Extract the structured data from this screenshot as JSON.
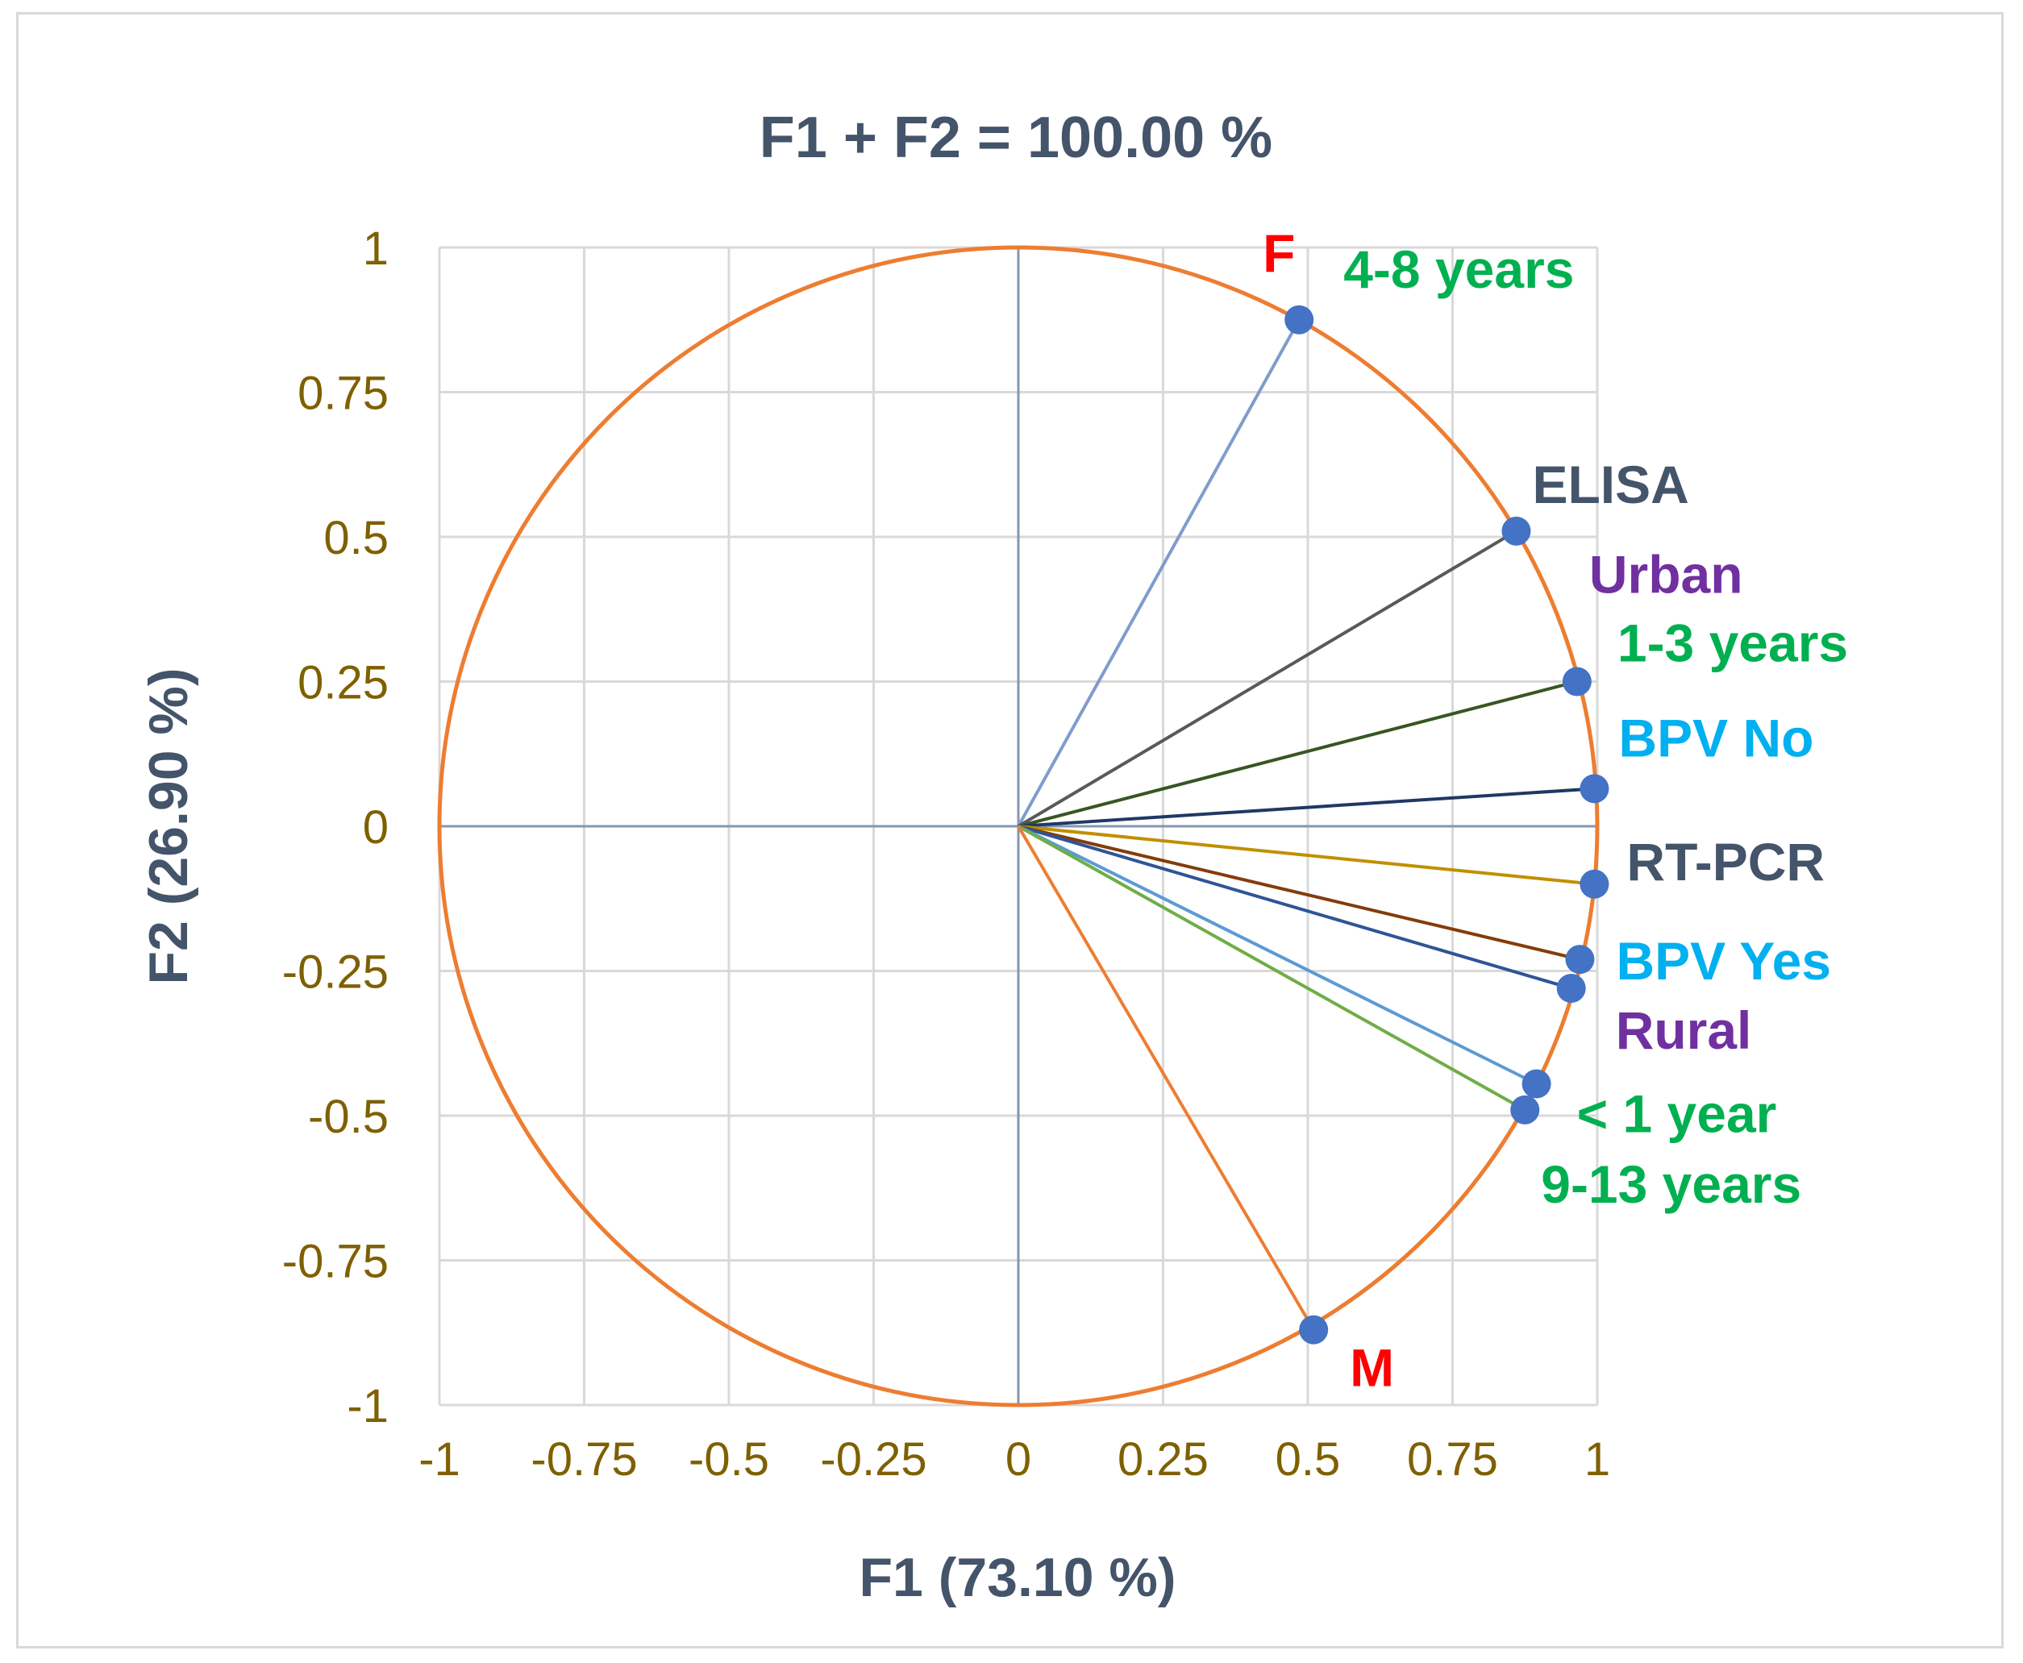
{
  "chart_data": {
    "type": "scatter",
    "subtype": "correlation-circle",
    "title": "F1 + F2 = 100.00 %",
    "xlabel": "F1 (73.10 %)",
    "ylabel": "F2 (26.90 %)",
    "xlim": [
      -1,
      1
    ],
    "ylim": [
      -1,
      1
    ],
    "xticks": [
      "-1",
      "-0.75",
      "-0.5",
      "-0.25",
      "0",
      "0.25",
      "0.5",
      "0.75",
      "1"
    ],
    "yticks": [
      "1",
      "0.75",
      "0.5",
      "0.25",
      "0",
      "-0.25",
      "-0.5",
      "-0.75",
      "-1"
    ],
    "grid": true,
    "circle_color": "#ed7d31",
    "marker_color": "#4472c4",
    "points": [
      {
        "label": "F",
        "x": 0.485,
        "y": 0.875,
        "line_color": "#7f9ccc",
        "label_color": "#ff0000"
      },
      {
        "label": "4-8 years",
        "x": 0.485,
        "y": 0.875,
        "line_color": "#7f9ccc",
        "label_color": "#00b050"
      },
      {
        "label": "ELISA",
        "x": 0.86,
        "y": 0.51,
        "line_color": "#595959",
        "label_color": "#44546a"
      },
      {
        "label": "Urban",
        "x": 0.965,
        "y": 0.25,
        "line_color": "#375623",
        "label_color": "#7030a0"
      },
      {
        "label": "1-3 years",
        "x": 0.965,
        "y": 0.25,
        "line_color": "#375623",
        "label_color": "#00b050"
      },
      {
        "label": "BPV No",
        "x": 0.995,
        "y": 0.065,
        "line_color": "#203864",
        "label_color": "#00b0f0"
      },
      {
        "label": "RT-PCR",
        "x": 0.995,
        "y": -0.1,
        "line_color": "#bf9000",
        "label_color": "#44546a"
      },
      {
        "label": "BPV Yes",
        "x": 0.97,
        "y": -0.23,
        "line_color": "#843c0c",
        "label_color": "#00b0f0"
      },
      {
        "label": "Rural",
        "x": 0.955,
        "y": -0.28,
        "line_color": "#2f5597",
        "label_color": "#7030a0"
      },
      {
        "label": "< 1 year",
        "x": 0.895,
        "y": -0.445,
        "line_color": "#5b9bd5",
        "label_color": "#00b050"
      },
      {
        "label": "9-13 years",
        "x": 0.875,
        "y": -0.49,
        "line_color": "#70ad47",
        "label_color": "#00b050"
      },
      {
        "label": "M",
        "x": 0.51,
        "y": -0.87,
        "line_color": "#ed7d31",
        "label_color": "#ff0000"
      }
    ]
  }
}
